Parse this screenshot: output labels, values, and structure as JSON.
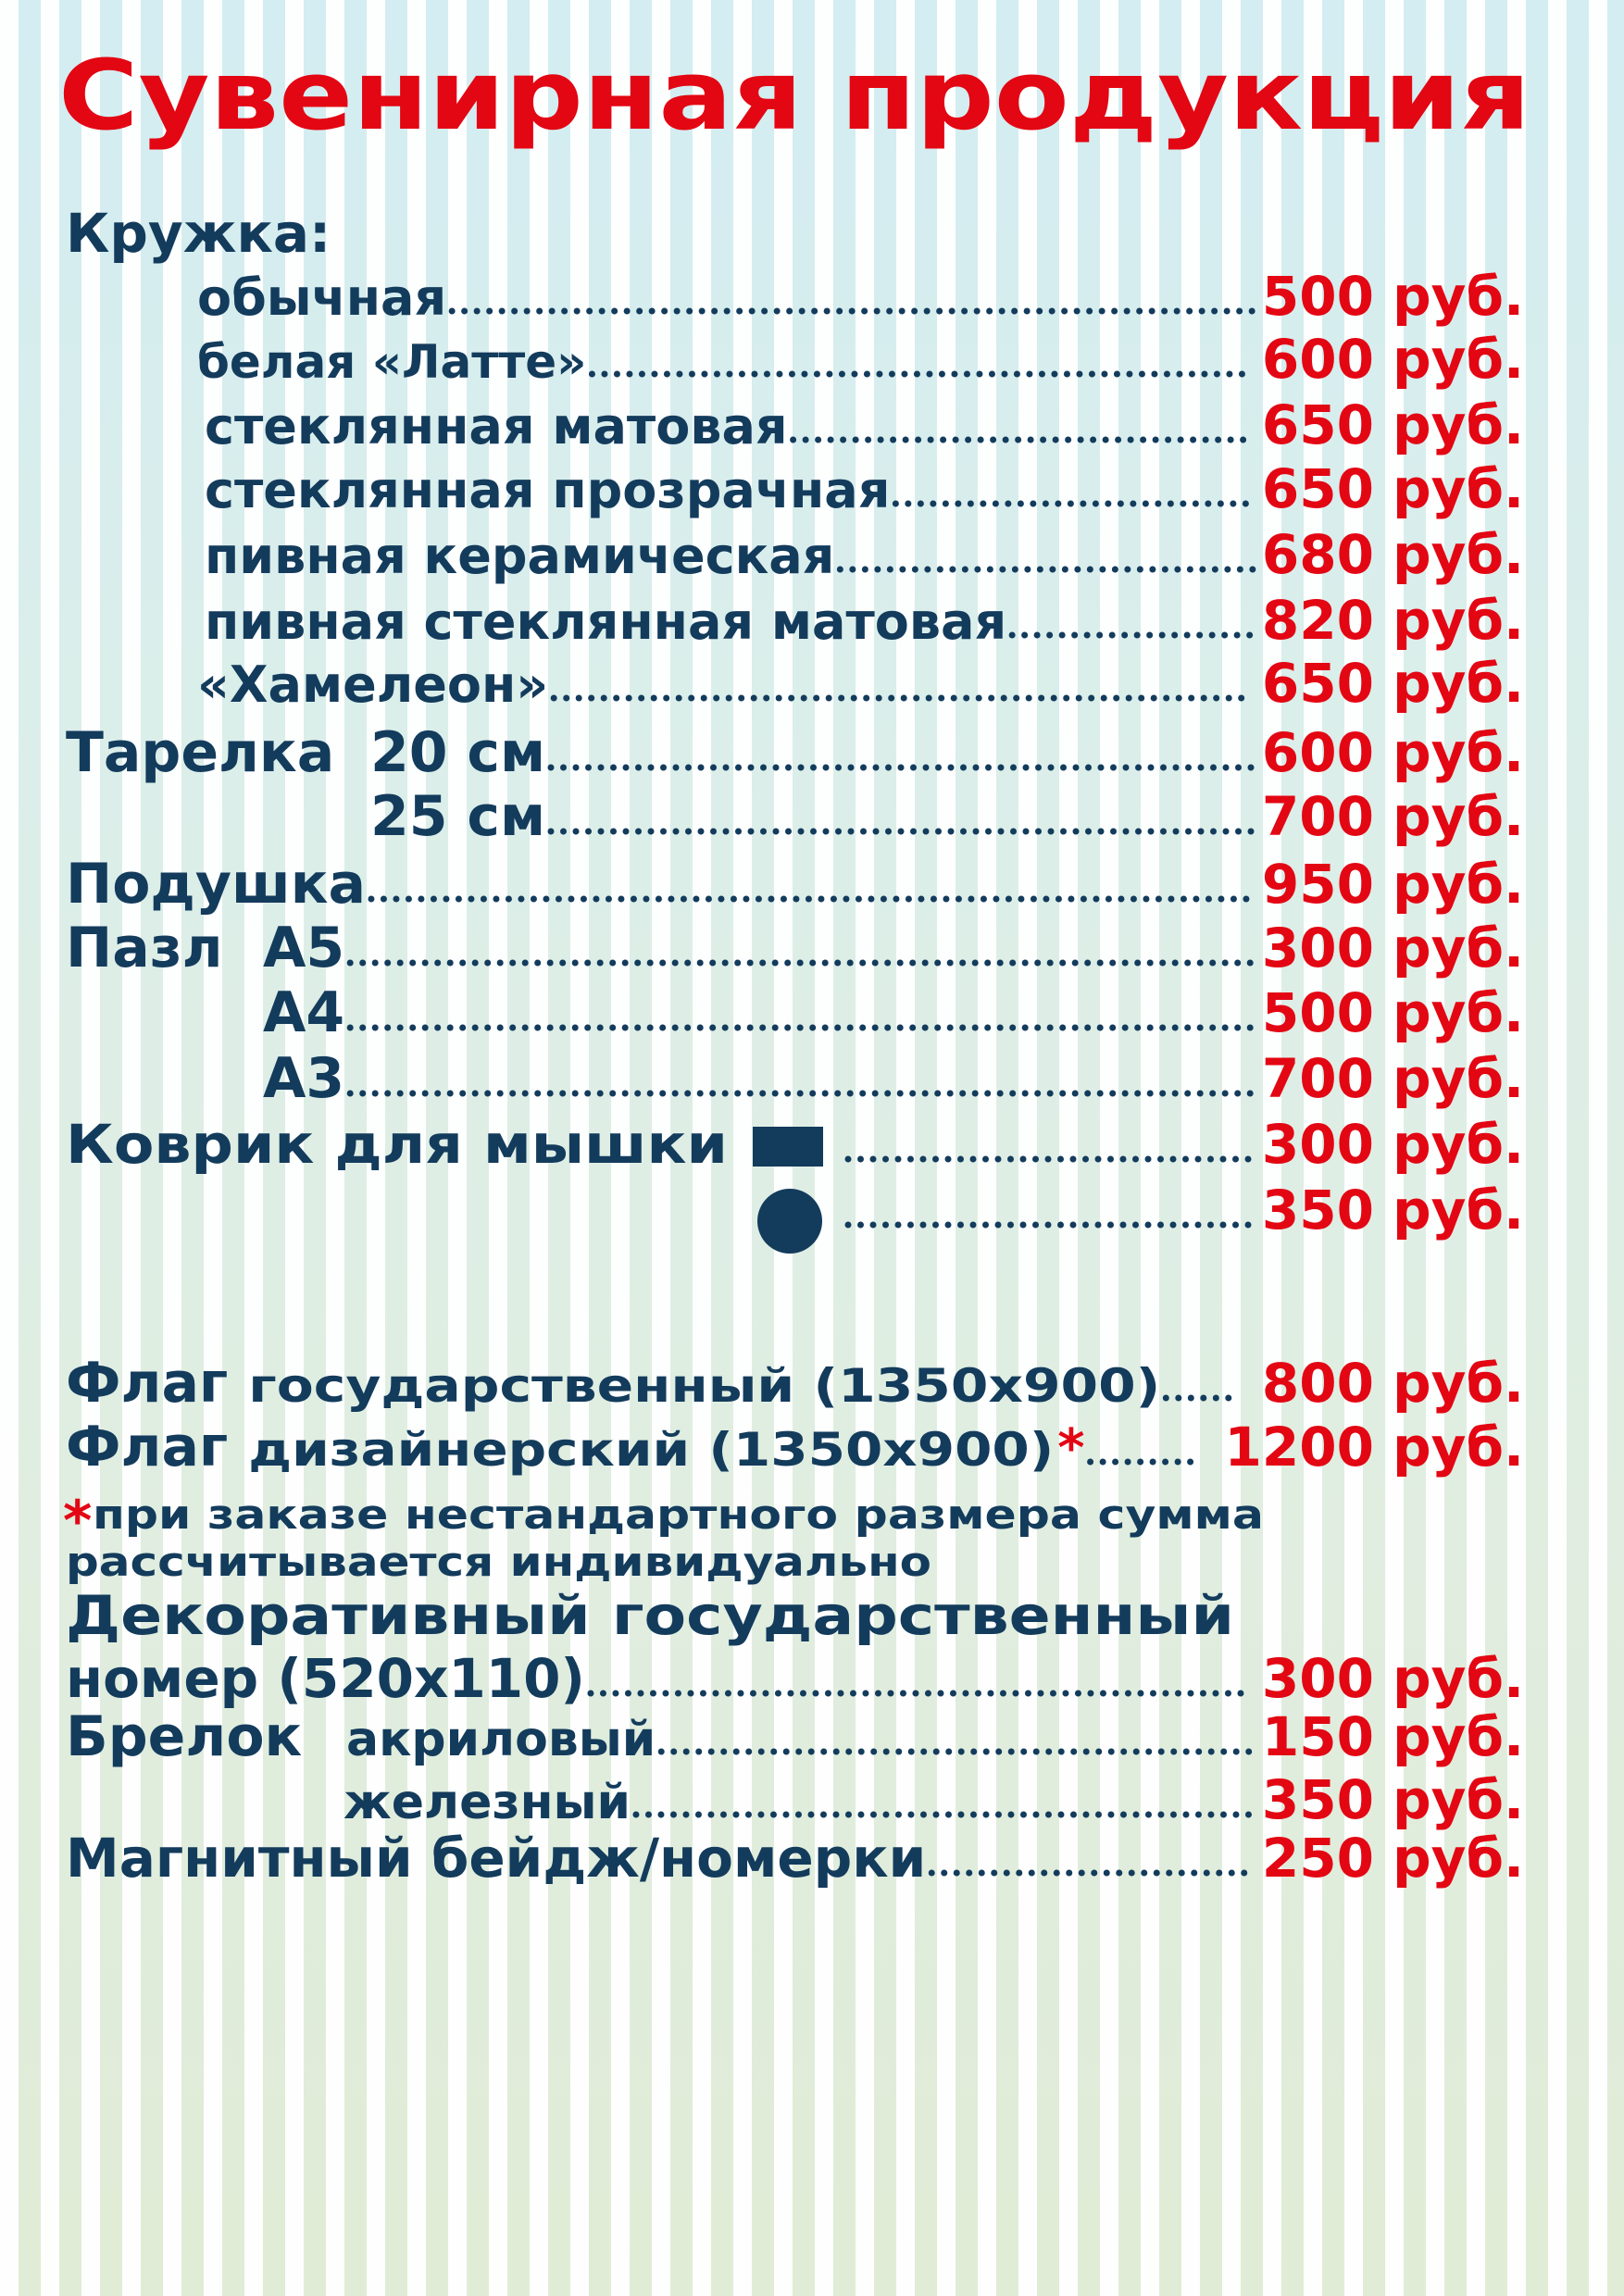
{
  "title": "Сувенирная продукция",
  "mug": {
    "heading": "Кружка:",
    "items": [
      {
        "label": "обычная",
        "price": "500 руб."
      },
      {
        "label": "белая «Латте»",
        "price": "600 руб."
      },
      {
        "label": "стеклянная матовая",
        "price": "650 руб."
      },
      {
        "label": "стеклянная прозрачная",
        "price": "650 руб."
      },
      {
        "label": "пивная керамическая",
        "price": "680 руб."
      },
      {
        "label": "пивная стеклянная матовая",
        "price": "820 руб."
      },
      {
        "label": "«Хамелеон»",
        "price": "650 руб."
      }
    ]
  },
  "plate": {
    "name": "Тарелка",
    "sizes": [
      {
        "label": "20 см",
        "price": "600 руб."
      },
      {
        "label": "25 см",
        "price": "700 руб."
      }
    ]
  },
  "pillow": {
    "label": "Подушка",
    "price": "950 руб."
  },
  "puzzle": {
    "name": "Пазл",
    "formats": [
      {
        "label": "А5",
        "price": "300 руб."
      },
      {
        "label": "А4",
        "price": "500 руб."
      },
      {
        "label": "А3",
        "price": "700 руб."
      }
    ]
  },
  "mousepad": {
    "label": "Коврик для мышки",
    "prices": [
      "300 руб.",
      "350 руб."
    ]
  },
  "flags": [
    {
      "name": "Флаг",
      "spec": "государственный (1350x900)",
      "price": "800 руб."
    },
    {
      "name": "Флаг",
      "spec": "дизайнерский (1350x900)",
      "mark": "*",
      "price": "1200 руб."
    }
  ],
  "footnote": {
    "mark": "*",
    "lines": [
      "при заказе нестандартного размера сумма",
      "рассчитывается индивидуально"
    ]
  },
  "plate_number": {
    "lines": [
      "Декоративный государственный",
      "номер (520x110)"
    ],
    "price": "300 руб."
  },
  "keychain": {
    "name": "Брелок",
    "types": [
      {
        "label": "акриловый",
        "price": "150 руб."
      },
      {
        "label": "железный",
        "price": "350 руб."
      }
    ]
  },
  "badge": {
    "label": "Магнитный бейдж/номерки",
    "price": "250 руб."
  }
}
